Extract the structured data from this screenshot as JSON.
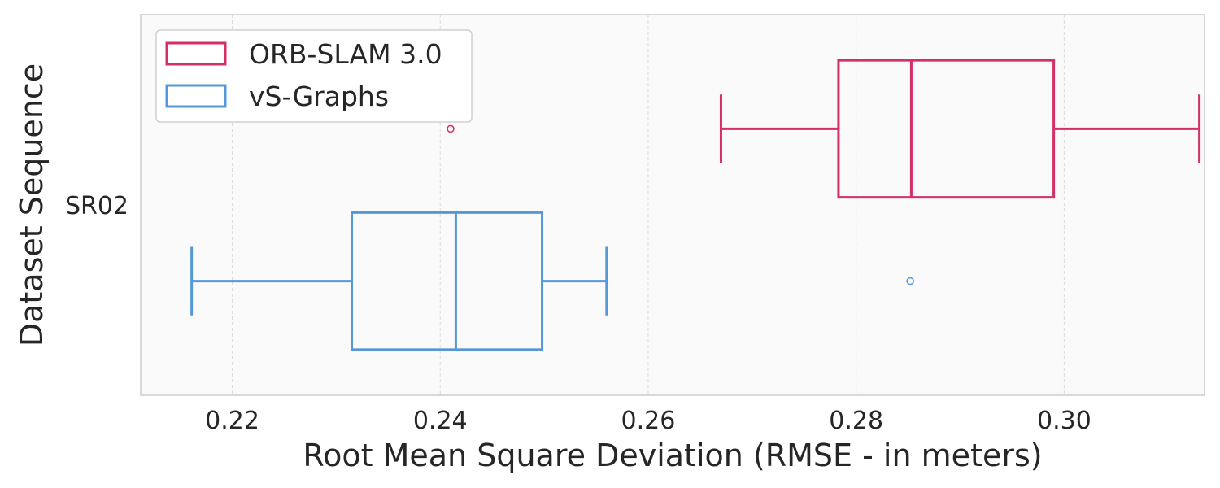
{
  "chart_data": {
    "type": "boxplot",
    "orientation": "horizontal",
    "xlabel": "Root Mean Square Deviation (RMSE - in meters)",
    "ylabel": "Dataset Sequence",
    "categories": [
      "SR02"
    ],
    "xlim": [
      0.2112,
      0.3135
    ],
    "xticks": [
      0.22,
      0.24,
      0.26,
      0.28,
      0.3
    ],
    "xtick_labels": [
      "0.22",
      "0.24",
      "0.26",
      "0.28",
      "0.30"
    ],
    "grid": true,
    "legend_position": "top-left",
    "series": [
      {
        "name": "ORB-SLAM 3.0",
        "color": "#d62f66",
        "boxes": [
          {
            "category": "SR02",
            "whisker_low": 0.267,
            "q1": 0.2783,
            "median": 0.2853,
            "q3": 0.299,
            "whisker_high": 0.313,
            "outliers": [
              0.241
            ]
          }
        ]
      },
      {
        "name": "vS-Graphs",
        "color": "#5598d8",
        "boxes": [
          {
            "category": "SR02",
            "whisker_low": 0.2161,
            "q1": 0.2315,
            "median": 0.2415,
            "q3": 0.2498,
            "whisker_high": 0.256,
            "outliers": [
              0.2852
            ]
          }
        ]
      }
    ]
  }
}
